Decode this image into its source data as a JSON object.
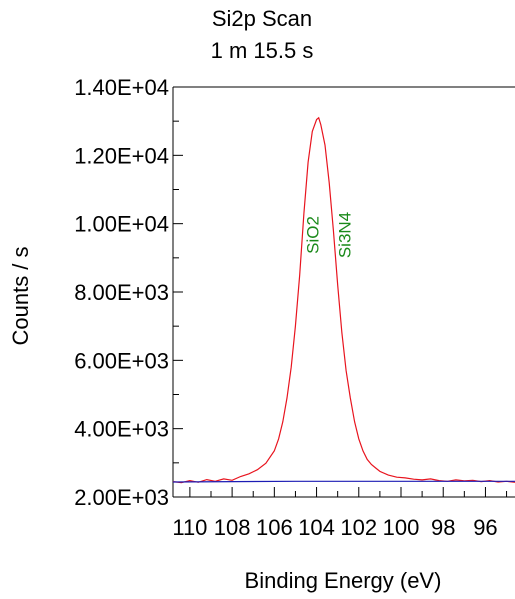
{
  "chart_data": {
    "type": "line",
    "title": "Si2p Scan",
    "subtitle": "1 m 15.5 s",
    "xlabel": "Binding Energy (eV)",
    "ylabel": "Counts / s",
    "x_reversed": true,
    "xlim": [
      110.8,
      94.6
    ],
    "ylim": [
      2000,
      14000
    ],
    "x_ticks": [
      110,
      108,
      106,
      104,
      102,
      100,
      98,
      96
    ],
    "x_tick_labels": [
      "110",
      "108",
      "106",
      "104",
      "102",
      "100",
      "98",
      "96"
    ],
    "y_ticks": [
      2000,
      4000,
      6000,
      8000,
      10000,
      12000,
      14000
    ],
    "y_tick_labels": [
      "2.00E+03",
      "4.00E+03",
      "6.00E+03",
      "8.00E+03",
      "1.00E+04",
      "1.20E+04",
      "1.40E+04"
    ],
    "grid": false,
    "annotations": [
      {
        "text": "SiO2",
        "x": 103.9,
        "color": "#1a8a1a"
      },
      {
        "text": "Si3N4",
        "x": 102.4,
        "color": "#1a8a1a"
      }
    ],
    "series": [
      {
        "color": "#e8141e",
        "x": [
          110.8,
          110.4,
          110.0,
          109.6,
          109.2,
          108.8,
          108.4,
          108.0,
          107.6,
          107.2,
          106.8,
          106.4,
          106.0,
          105.8,
          105.6,
          105.4,
          105.2,
          105.0,
          104.8,
          104.6,
          104.4,
          104.2,
          104.0,
          103.9,
          103.8,
          103.6,
          103.4,
          103.2,
          103.0,
          102.8,
          102.6,
          102.4,
          102.2,
          102.0,
          101.8,
          101.6,
          101.4,
          101.2,
          101.0,
          100.6,
          100.2,
          99.8,
          99.4,
          99.0,
          98.6,
          98.2,
          97.8,
          97.4,
          97.0,
          96.6,
          96.2,
          95.8,
          95.4,
          95.0,
          94.6
        ],
        "y": [
          2450,
          2420,
          2480,
          2430,
          2510,
          2460,
          2530,
          2490,
          2600,
          2680,
          2800,
          2990,
          3350,
          3700,
          4200,
          4900,
          5800,
          7000,
          8500,
          10300,
          11800,
          12700,
          13050,
          13100,
          12900,
          12300,
          11200,
          9800,
          8200,
          6800,
          5700,
          4900,
          4200,
          3700,
          3350,
          3100,
          2950,
          2850,
          2750,
          2640,
          2580,
          2560,
          2520,
          2500,
          2530,
          2480,
          2460,
          2500,
          2470,
          2490,
          2450,
          2480,
          2440,
          2460,
          2430
        ]
      },
      {
        "color": "#1c1cb4",
        "x": [
          110.8,
          105.0,
          94.6
        ],
        "y": [
          2440,
          2460,
          2460
        ]
      }
    ]
  }
}
